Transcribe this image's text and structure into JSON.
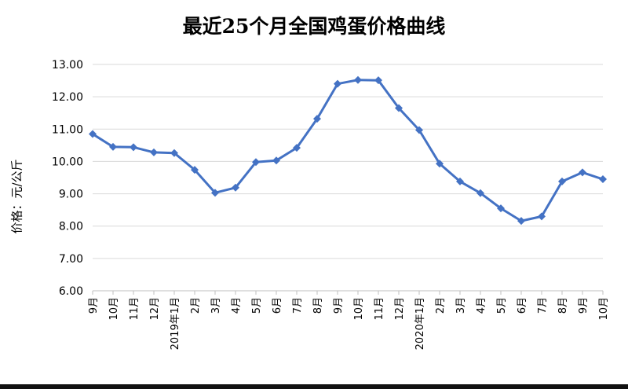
{
  "chart_data": {
    "type": "line",
    "title": "最近25个月全国鸡蛋价格曲线",
    "ylabel": "价格：元/公斤",
    "xlabel": "",
    "ylim": [
      6,
      13
    ],
    "yticks": [
      "6.00",
      "7.00",
      "8.00",
      "9.00",
      "10.00",
      "11.00",
      "12.00",
      "13.00"
    ],
    "categories": [
      "9月",
      "10月",
      "11月",
      "12月",
      "2019年1月",
      "2月",
      "3月",
      "4月",
      "5月",
      "6月",
      "7月",
      "8月",
      "9月",
      "10月",
      "11月",
      "12月",
      "2020年1月",
      "2月",
      "3月",
      "4月",
      "5月",
      "6月",
      "7月",
      "8月",
      "9月",
      "10月"
    ],
    "series": [
      {
        "values": [
          10.85,
          10.45,
          10.44,
          10.28,
          10.26,
          9.74,
          9.03,
          9.19,
          9.98,
          10.03,
          10.42,
          11.32,
          12.4,
          12.52,
          12.51,
          11.65,
          10.97,
          9.93,
          9.38,
          9.02,
          8.55,
          8.16,
          8.3,
          9.38,
          9.66,
          9.45
        ]
      }
    ],
    "grid": true,
    "legend": "none",
    "line_color": "#4472C4"
  }
}
